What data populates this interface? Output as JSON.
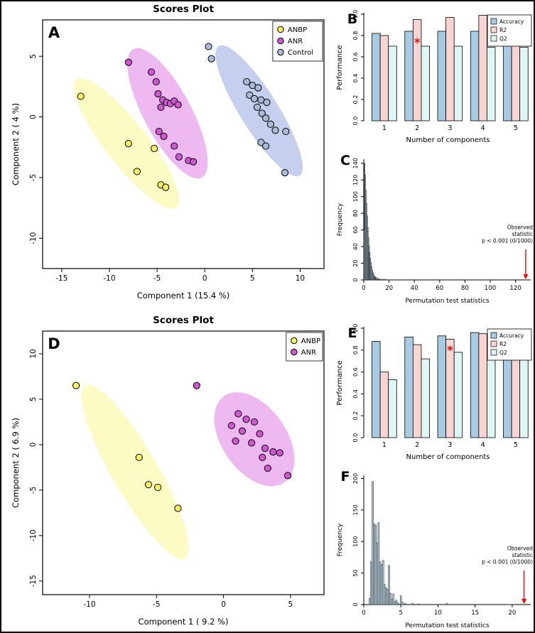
{
  "figure": {
    "background": "#ffffff",
    "border_color": "#000000"
  },
  "chart_data": [
    {
      "id": "A",
      "type": "scatter",
      "panel_label": "A",
      "title": "Scores Plot",
      "xlabel": "Component 1 (15.4 %)",
      "ylabel": "Component 2 ( 4 %)",
      "xlim": [
        -17,
        12.5
      ],
      "ylim": [
        -12.5,
        8
      ],
      "xticks": [
        -15,
        -10,
        -5,
        0,
        5,
        10
      ],
      "yticks": [
        -10,
        -5,
        0,
        5
      ],
      "legend": [
        {
          "label": "ANBP",
          "color": "#FBF15C"
        },
        {
          "label": "ANR",
          "color": "#D355D3"
        },
        {
          "label": "Control",
          "color": "#A8BCD9"
        }
      ],
      "groups": [
        {
          "name": "ANBP",
          "color": "#FBF15C",
          "ellipse": {
            "cx": -8.2,
            "cy": -2.2,
            "rx": 2.2,
            "ry": 6.7,
            "rot": -38,
            "fill": "#FAFAB4"
          },
          "points": [
            [
              -13,
              1.7
            ],
            [
              -8,
              -2.2
            ],
            [
              -7.1,
              -4.5
            ],
            [
              -5.3,
              -2.6
            ],
            [
              -4.6,
              -5.6
            ],
            [
              -4.1,
              -5.8
            ]
          ]
        },
        {
          "name": "ANR",
          "color": "#D355D3",
          "ellipse": {
            "cx": -3.9,
            "cy": 0.3,
            "rx": 2.5,
            "ry": 6.0,
            "rot": -28,
            "fill": "#E9A8EC"
          },
          "points": [
            [
              -8,
              4.5
            ],
            [
              -5.6,
              3.7
            ],
            [
              -5.1,
              2.9
            ],
            [
              -4.9,
              1.9
            ],
            [
              -4.4,
              1.4
            ],
            [
              -4.0,
              1.2
            ],
            [
              -3.6,
              1.1
            ],
            [
              -3.2,
              1.3
            ],
            [
              -4.6,
              0.8
            ],
            [
              -2.8,
              1.0
            ],
            [
              -4.8,
              -1.2
            ],
            [
              -4.3,
              -1.6
            ],
            [
              -3.2,
              -2.4
            ],
            [
              -2.7,
              -3.3
            ],
            [
              -1.7,
              -3.6
            ],
            [
              -1.2,
              -3.7
            ]
          ]
        },
        {
          "name": "Control",
          "color": "#A8BCD9",
          "ellipse": {
            "cx": 5.7,
            "cy": 0.5,
            "rx": 2.0,
            "ry": 6.3,
            "rot": -32,
            "fill": "#B9C3EA"
          },
          "points": [
            [
              0.4,
              5.8
            ],
            [
              0.7,
              4.8
            ],
            [
              4.4,
              2.9
            ],
            [
              5.0,
              2.6
            ],
            [
              5.6,
              2.4
            ],
            [
              4.7,
              1.8
            ],
            [
              5.2,
              1.5
            ],
            [
              5.9,
              1.4
            ],
            [
              6.5,
              1.2
            ],
            [
              5.5,
              0.8
            ],
            [
              6.0,
              0.3
            ],
            [
              6.4,
              -0.1
            ],
            [
              6.9,
              -0.6
            ],
            [
              7.4,
              -1.1
            ],
            [
              8.5,
              -1.2
            ],
            [
              5.9,
              -2.1
            ],
            [
              6.4,
              -2.4
            ],
            [
              8.4,
              -4.6
            ]
          ]
        }
      ]
    },
    {
      "id": "B",
      "type": "grouped_bar",
      "panel_label": "B",
      "xlabel": "Number of components",
      "ylabel": "Performance",
      "categories": [
        "1",
        "2",
        "3",
        "4",
        "5"
      ],
      "ylim": [
        0,
        1.0
      ],
      "yticks": [
        0,
        0.2,
        0.4,
        0.6,
        0.8,
        1.0
      ],
      "ytick_labels": [
        "0.0",
        "0.2",
        "0.4",
        "0.6",
        "0.8",
        "1.0"
      ],
      "series": [
        {
          "name": "Accuracy",
          "color": "#A6CBE3",
          "values": [
            0.82,
            0.84,
            0.84,
            0.84,
            0.84
          ]
        },
        {
          "name": "R2",
          "color": "#F9D4D0",
          "values": [
            0.8,
            0.95,
            0.97,
            0.99,
            0.99
          ]
        },
        {
          "name": "Q2",
          "color": "#DFF6F7",
          "values": [
            0.7,
            0.7,
            0.7,
            0.69,
            0.69
          ]
        }
      ],
      "best_marker": {
        "category_index": 1,
        "y": 0.735,
        "symbol": "*",
        "color": "#FF0000"
      },
      "legend": [
        "Accuracy",
        "R2",
        "Q2"
      ]
    },
    {
      "id": "C",
      "type": "histogram",
      "panel_label": "C",
      "xlabel": "Permutation test statistics",
      "ylabel": "Frequency",
      "xlim": [
        0,
        132
      ],
      "ylim": [
        0,
        145
      ],
      "xticks": [
        0,
        20,
        40,
        60,
        80,
        100,
        120
      ],
      "yticks": [
        0,
        20,
        40,
        60,
        80,
        100,
        120,
        140
      ],
      "bin_width": 0.5,
      "bar_color": "#AFC6D2",
      "bars": [
        [
          0.25,
          60
        ],
        [
          0.75,
          140
        ],
        [
          1.25,
          126
        ],
        [
          1.75,
          108
        ],
        [
          2.25,
          92
        ],
        [
          2.75,
          77
        ],
        [
          3.25,
          63
        ],
        [
          3.75,
          51
        ],
        [
          4.25,
          41
        ],
        [
          4.75,
          33
        ],
        [
          5.25,
          26
        ],
        [
          5.75,
          21
        ],
        [
          6.25,
          16
        ],
        [
          6.75,
          12
        ],
        [
          7.25,
          9
        ],
        [
          7.75,
          7
        ],
        [
          8.25,
          5
        ],
        [
          8.75,
          4
        ],
        [
          9.25,
          3
        ],
        [
          9.75,
          3
        ],
        [
          10.5,
          2
        ],
        [
          11.5,
          2
        ],
        [
          12.5,
          1
        ],
        [
          13.5,
          1
        ],
        [
          15,
          1
        ],
        [
          17,
          1
        ]
      ],
      "annotation": {
        "lines": [
          "Observed",
          "statistic",
          "p < 0.001 (0/1000)"
        ],
        "arrow_x": 128,
        "arrow_color": "#FF0000"
      }
    },
    {
      "id": "D",
      "type": "scatter",
      "panel_label": "D",
      "title": "Scores Plot",
      "xlabel": "Component 1 ( 9.2 %)",
      "ylabel": "Component 2 ( 6.9 %)",
      "xlim": [
        -13.5,
        7.5
      ],
      "ylim": [
        -16.5,
        12.5
      ],
      "xticks": [
        -10,
        -5,
        0,
        5
      ],
      "yticks": [
        -15,
        -10,
        -5,
        0,
        5,
        10
      ],
      "legend": [
        {
          "label": "ANBP",
          "color": "#FBF15C"
        },
        {
          "label": "ANR",
          "color": "#D355D3"
        }
      ],
      "groups": [
        {
          "name": "ANBP",
          "color": "#FBF15C",
          "ellipse": {
            "cx": -6.6,
            "cy": -3.0,
            "rx": 1.7,
            "ry": 11.0,
            "rot": -30,
            "fill": "#FAFAB4"
          },
          "points": [
            [
              -11,
              6.5
            ],
            [
              -6.3,
              -1.4
            ],
            [
              -5.6,
              -4.4
            ],
            [
              -4.9,
              -4.7
            ],
            [
              -3.4,
              -7.0
            ]
          ]
        },
        {
          "name": "ANR",
          "color": "#D355D3",
          "ellipse": {
            "cx": 2.3,
            "cy": 0.6,
            "rx": 2.4,
            "ry": 5.8,
            "rot": -35,
            "fill": "#E9A8EC"
          },
          "points": [
            [
              -2,
              6.5
            ],
            [
              1.1,
              3.4
            ],
            [
              1.7,
              2.8
            ],
            [
              2.3,
              2.5
            ],
            [
              0.6,
              2.1
            ],
            [
              1.4,
              1.5
            ],
            [
              2.7,
              1.2
            ],
            [
              0.9,
              0.4
            ],
            [
              2.1,
              0.2
            ],
            [
              3.1,
              -0.4
            ],
            [
              3.7,
              -0.8
            ],
            [
              4.2,
              -0.9
            ],
            [
              2.9,
              -1.4
            ],
            [
              3.3,
              -2.6
            ],
            [
              4.8,
              -3.4
            ]
          ]
        }
      ]
    },
    {
      "id": "E",
      "type": "grouped_bar",
      "panel_label": "E",
      "xlabel": "Number of components",
      "ylabel": "Performance",
      "categories": [
        "1",
        "2",
        "3",
        "4",
        "5"
      ],
      "ylim": [
        0,
        1.0
      ],
      "yticks": [
        0,
        0.2,
        0.4,
        0.6,
        0.8,
        1.0
      ],
      "ytick_labels": [
        "0.0",
        "0.2",
        "0.4",
        "0.6",
        "0.8",
        "1.0"
      ],
      "series": [
        {
          "name": "Accuracy",
          "color": "#A6CBE3",
          "values": [
            0.88,
            0.92,
            0.93,
            0.96,
            0.97
          ]
        },
        {
          "name": "R2",
          "color": "#F9D4D0",
          "values": [
            0.6,
            0.85,
            0.9,
            0.95,
            0.97
          ]
        },
        {
          "name": "Q2",
          "color": "#DFF6F7",
          "values": [
            0.53,
            0.72,
            0.78,
            0.75,
            0.75
          ]
        }
      ],
      "best_marker": {
        "category_index": 2,
        "y": 0.8,
        "symbol": "*",
        "color": "#FF0000"
      },
      "legend": [
        "Accuracy",
        "R2",
        "Q2"
      ]
    },
    {
      "id": "F",
      "type": "histogram",
      "panel_label": "F",
      "xlabel": "Permutation test statistics",
      "ylabel": "Frequency",
      "xlim": [
        0,
        22.5
      ],
      "ylim": [
        0,
        205
      ],
      "xticks": [
        0,
        5,
        10,
        15,
        20
      ],
      "yticks": [
        0,
        50,
        100,
        150,
        200
      ],
      "bin_width": 0.2,
      "bar_color": "#AFC6D2",
      "bars": [
        [
          0.8,
          10
        ],
        [
          1.0,
          68
        ],
        [
          1.2,
          195
        ],
        [
          1.4,
          128
        ],
        [
          1.6,
          126
        ],
        [
          1.8,
          98
        ],
        [
          2.0,
          130
        ],
        [
          2.2,
          68
        ],
        [
          2.4,
          64
        ],
        [
          2.6,
          70
        ],
        [
          2.8,
          32
        ],
        [
          3.0,
          27
        ],
        [
          3.2,
          24
        ],
        [
          3.4,
          62
        ],
        [
          3.6,
          18
        ],
        [
          3.8,
          9
        ],
        [
          4.0,
          17
        ],
        [
          4.2,
          5
        ],
        [
          4.4,
          7
        ],
        [
          4.6,
          3
        ],
        [
          5.0,
          14
        ],
        [
          5.2,
          4
        ],
        [
          5.6,
          2
        ],
        [
          6.6,
          2
        ],
        [
          7.4,
          1
        ],
        [
          11.2,
          2
        ]
      ],
      "annotation": {
        "lines": [
          "Observed",
          "statistic",
          "p < 0.001 (0/1000)"
        ],
        "arrow_x": 21.6,
        "arrow_color": "#FF0000"
      }
    }
  ]
}
